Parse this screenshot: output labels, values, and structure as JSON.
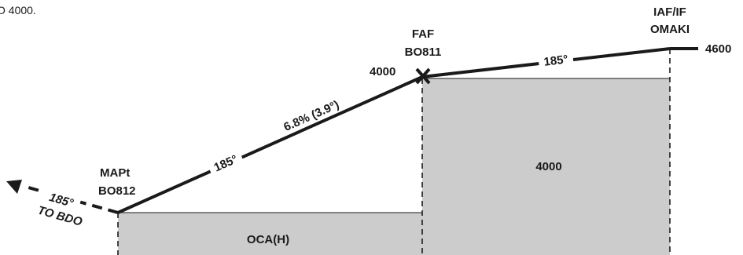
{
  "note_fragment": "O 4000.",
  "waypoints": {
    "iaf": {
      "line1": "IAF/IF",
      "line2": "OMAKI",
      "altitude": "4600"
    },
    "faf": {
      "line1": "FAF",
      "line2": "BO811",
      "altitude": "4000"
    },
    "mapt": {
      "line1": "MAPt",
      "line2": "BO812"
    }
  },
  "segments": {
    "intermediate_course": "185°",
    "final_course": "185°",
    "final_gradient": "6.8% (3.9°)",
    "missed_course": "185°",
    "missed_destination": "TO BDO"
  },
  "areas": {
    "upper_altitude": "4000",
    "oca_label": "OCA(H)"
  },
  "colors": {
    "profile_line": "#1a1a1a",
    "area_fill": "#cccccc",
    "text": "#1a1a1a"
  }
}
